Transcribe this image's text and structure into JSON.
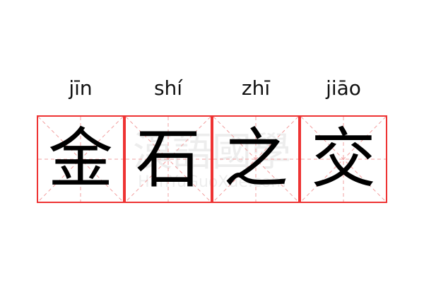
{
  "words": [
    {
      "pinyin": "jīn",
      "char": "金"
    },
    {
      "pinyin": "shí",
      "char": "石"
    },
    {
      "pinyin": "zhī",
      "char": "之"
    },
    {
      "pinyin": "jiāo",
      "char": "交"
    }
  ],
  "watermark": {
    "cn": "漢語國學",
    "en": "HanYuGuoXue.com"
  },
  "grid_color": "#ee3333"
}
